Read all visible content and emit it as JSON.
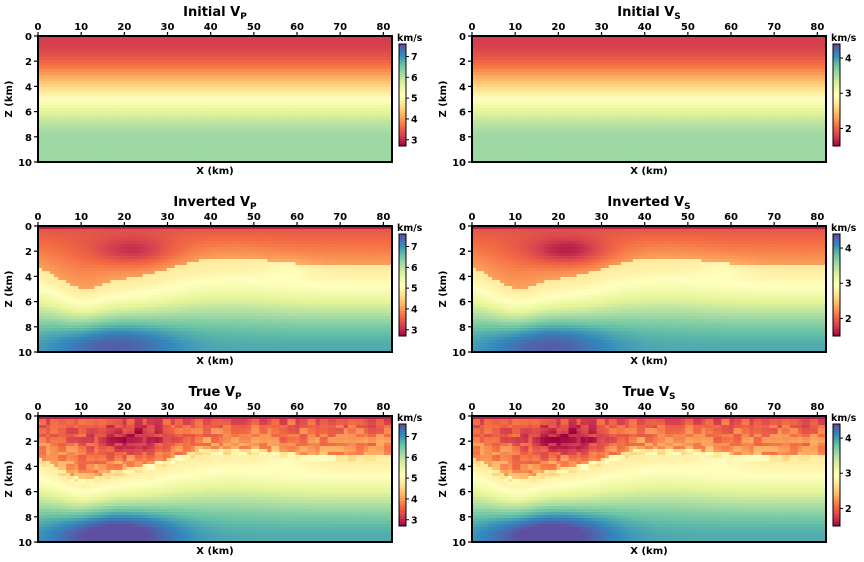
{
  "figure": {
    "type": "heatmap-grid",
    "panels": 6
  },
  "chart_data": [
    {
      "id": "vp-initial",
      "type": "heatmap",
      "title": "Initial V",
      "subscript": "P",
      "kind": "initial",
      "quantity": "vp",
      "xlabel": "X (km)",
      "ylabel": "Z (km)",
      "xlim": [
        0,
        82
      ],
      "ylim": [
        0,
        10
      ],
      "y_inverted": true,
      "xticks": [
        0,
        10,
        20,
        30,
        40,
        50,
        60,
        70,
        80
      ],
      "yticks": [
        0,
        2,
        4,
        6,
        8,
        10
      ],
      "colorbar": {
        "label": "km/s",
        "min": 2.7,
        "max": 7.6,
        "ticks": [
          3,
          4,
          5,
          6,
          7
        ],
        "cmap": "Spectral"
      }
    },
    {
      "id": "vs-initial",
      "type": "heatmap",
      "title": "Initial V",
      "subscript": "S",
      "kind": "initial",
      "quantity": "vs",
      "xlabel": "X (km)",
      "ylabel": "Z (km)",
      "xlim": [
        0,
        82
      ],
      "ylim": [
        0,
        10
      ],
      "y_inverted": true,
      "xticks": [
        0,
        10,
        20,
        30,
        40,
        50,
        60,
        70,
        80
      ],
      "yticks": [
        0,
        2,
        4,
        6,
        8,
        10
      ],
      "colorbar": {
        "label": "km/s",
        "min": 1.5,
        "max": 4.4,
        "ticks": [
          2,
          3,
          4
        ],
        "cmap": "Spectral"
      }
    },
    {
      "id": "vp-inverted",
      "type": "heatmap",
      "title": "Inverted V",
      "subscript": "P",
      "kind": "inverted",
      "quantity": "vp",
      "xlabel": "X (km)",
      "ylabel": "Z (km)",
      "xlim": [
        0,
        82
      ],
      "ylim": [
        0,
        10
      ],
      "y_inverted": true,
      "xticks": [
        0,
        10,
        20,
        30,
        40,
        50,
        60,
        70,
        80
      ],
      "yticks": [
        0,
        2,
        4,
        6,
        8,
        10
      ],
      "colorbar": {
        "label": "km/s",
        "min": 2.7,
        "max": 7.6,
        "ticks": [
          3,
          4,
          5,
          6,
          7
        ],
        "cmap": "Spectral"
      }
    },
    {
      "id": "vs-inverted",
      "type": "heatmap",
      "title": "Inverted V",
      "subscript": "S",
      "kind": "inverted",
      "quantity": "vs",
      "xlabel": "X (km)",
      "ylabel": "Z (km)",
      "xlim": [
        0,
        82
      ],
      "ylim": [
        0,
        10
      ],
      "y_inverted": true,
      "xticks": [
        0,
        10,
        20,
        30,
        40,
        50,
        60,
        70,
        80
      ],
      "yticks": [
        0,
        2,
        4,
        6,
        8,
        10
      ],
      "colorbar": {
        "label": "km/s",
        "min": 1.5,
        "max": 4.4,
        "ticks": [
          2,
          3,
          4
        ],
        "cmap": "Spectral"
      }
    },
    {
      "id": "vp-true",
      "type": "heatmap",
      "title": "True V",
      "subscript": "P",
      "kind": "true",
      "quantity": "vp",
      "xlabel": "X (km)",
      "ylabel": "Z (km)",
      "xlim": [
        0,
        82
      ],
      "ylim": [
        0,
        10
      ],
      "y_inverted": true,
      "xticks": [
        0,
        10,
        20,
        30,
        40,
        50,
        60,
        70,
        80
      ],
      "yticks": [
        0,
        2,
        4,
        6,
        8,
        10
      ],
      "colorbar": {
        "label": "km/s",
        "min": 2.7,
        "max": 7.6,
        "ticks": [
          3,
          4,
          5,
          6,
          7
        ],
        "cmap": "Spectral"
      }
    },
    {
      "id": "vs-true",
      "type": "heatmap",
      "title": "True V",
      "subscript": "S",
      "kind": "true",
      "quantity": "vs",
      "xlabel": "X (km)",
      "ylabel": "Z (km)",
      "xlim": [
        0,
        82
      ],
      "ylim": [
        0,
        10
      ],
      "y_inverted": true,
      "xticks": [
        0,
        10,
        20,
        30,
        40,
        50,
        60,
        70,
        80
      ],
      "yticks": [
        0,
        2,
        4,
        6,
        8,
        10
      ],
      "colorbar": {
        "label": "km/s",
        "min": 1.5,
        "max": 4.4,
        "ticks": [
          2,
          3,
          4
        ],
        "cmap": "Spectral"
      }
    }
  ]
}
